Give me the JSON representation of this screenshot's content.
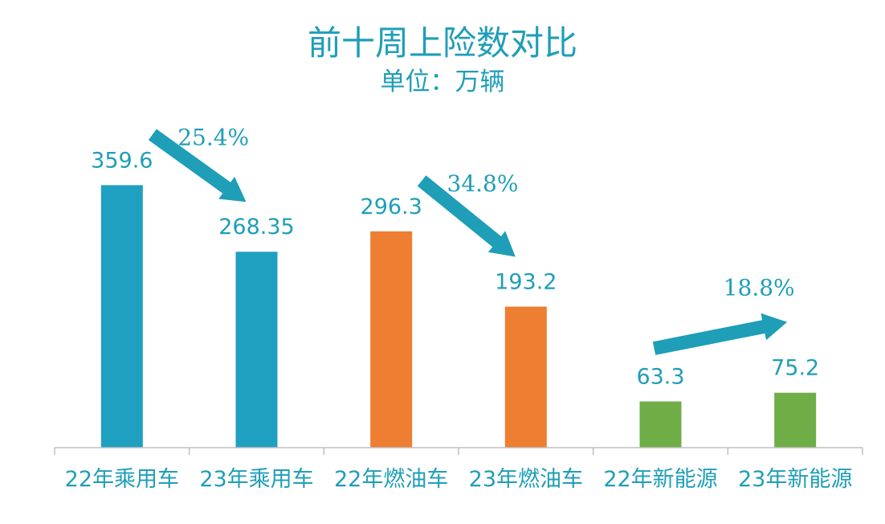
{
  "chart_data": {
    "type": "bar",
    "title": "前十周上险数对比",
    "subtitle": "单位：万辆",
    "categories": [
      "22年乘用车",
      "23年乘用车",
      "22年燃油车",
      "23年燃油车",
      "22年新能源",
      "23年新能源"
    ],
    "values": [
      359.6,
      268.35,
      296.3,
      193.2,
      63.3,
      75.2
    ],
    "value_labels": [
      "359.6",
      "268.35",
      "296.3",
      "193.2",
      "63.3",
      "75.2"
    ],
    "bar_colors": [
      "#20A0C0",
      "#20A0C0",
      "#EE7E32",
      "#EE7E32",
      "#6FAD47",
      "#6FAD47"
    ],
    "ylim": [
      0,
      360
    ],
    "grid": false,
    "legend": "none",
    "annotations": [
      {
        "from": 0,
        "to": 1,
        "label": "25.4%",
        "direction": "down"
      },
      {
        "from": 2,
        "to": 3,
        "label": "34.8%",
        "direction": "down"
      },
      {
        "from": 4,
        "to": 5,
        "label": "18.8%",
        "direction": "up"
      }
    ],
    "colors": {
      "title": "#1F9EB8",
      "labels": "#1F9EB8",
      "axis": "#BFBFBF",
      "arrow": "#1F9EB8"
    }
  }
}
